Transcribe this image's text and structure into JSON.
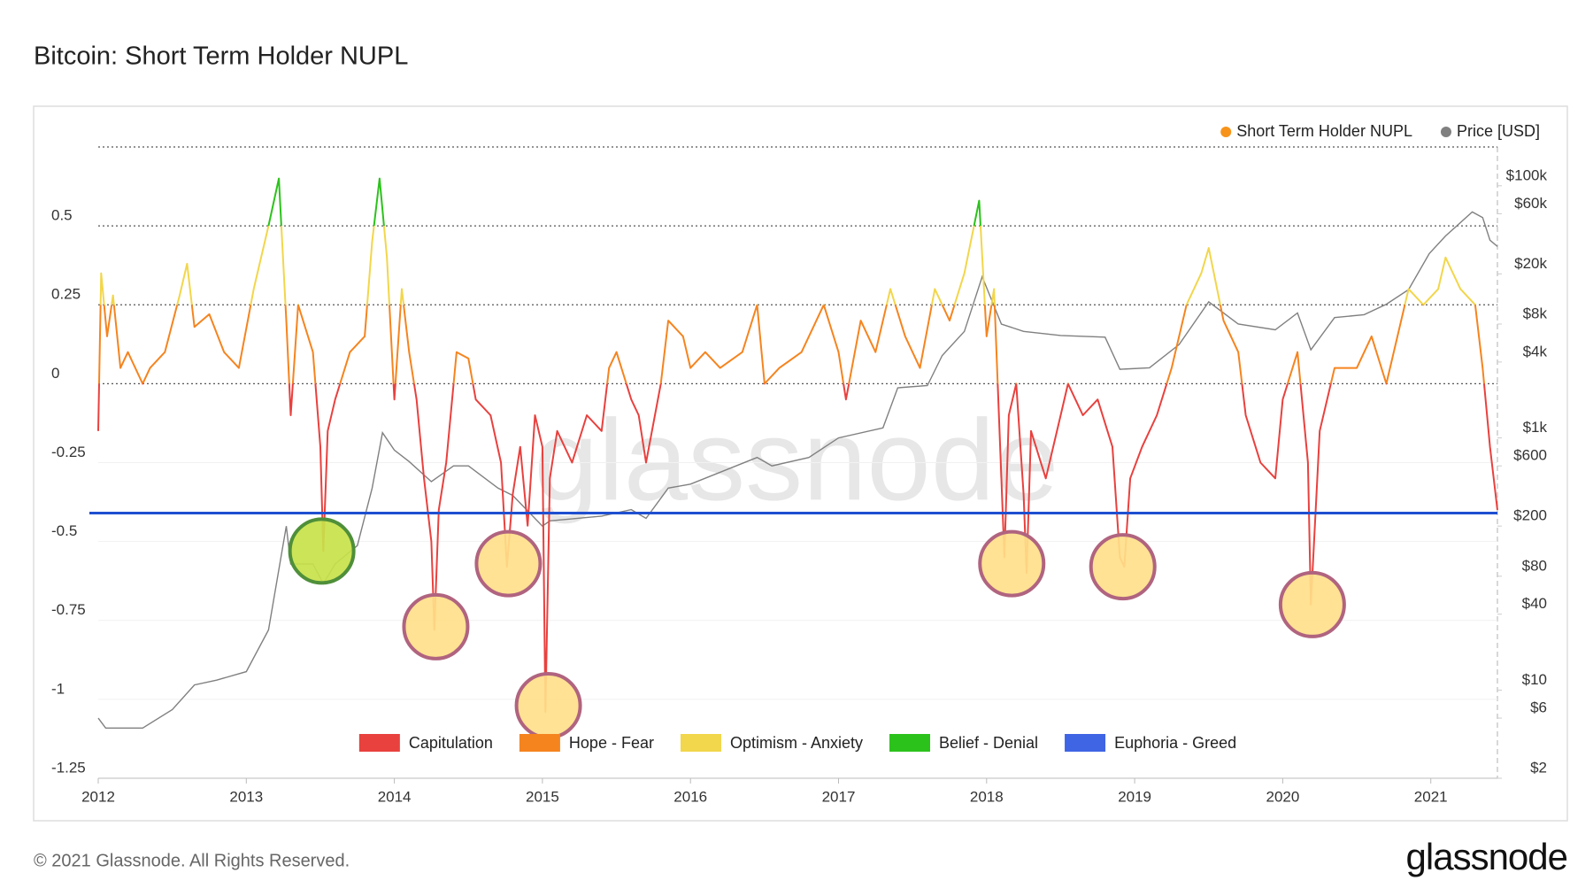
{
  "chart_data": {
    "type": "line",
    "title": "Bitcoin: Short Term Holder NUPL",
    "copyright": "© 2021 Glassnode. All Rights Reserved.",
    "brand": "glassnode",
    "watermark": "glassnode",
    "xlim": [
      2012,
      2021.45
    ],
    "xticks": [
      2012,
      2013,
      2014,
      2015,
      2016,
      2017,
      2018,
      2019,
      2020,
      2021
    ],
    "ylim": [
      -1.25,
      0.75
    ],
    "yticks": [
      -1.25,
      -1,
      -0.75,
      -0.5,
      -0.25,
      0,
      0.25,
      0.5
    ],
    "y2log": true,
    "y2lim": [
      2,
      203000
    ],
    "y2ticks": [
      {
        "value": 2,
        "label": "$2"
      },
      {
        "value": 6,
        "label": "$6"
      },
      {
        "value": 10,
        "label": "$10"
      },
      {
        "value": 40,
        "label": "$40"
      },
      {
        "value": 80,
        "label": "$80"
      },
      {
        "value": 200,
        "label": "$200"
      },
      {
        "value": 600,
        "label": "$600"
      },
      {
        "value": 1000,
        "label": "$1k"
      },
      {
        "value": 4000,
        "label": "$4k"
      },
      {
        "value": 8000,
        "label": "$8k"
      },
      {
        "value": 20000,
        "label": "$20k"
      },
      {
        "value": 60000,
        "label": "$60k"
      },
      {
        "value": 100000,
        "label": "$100k"
      }
    ],
    "grid": true,
    "legend": "top-right",
    "series": [
      {
        "name": "Short Term Holder NUPL",
        "color": "#f7931a",
        "x": [
          2012.0,
          2012.02,
          2012.06,
          2012.1,
          2012.15,
          2012.2,
          2012.3,
          2012.35,
          2012.45,
          2012.55,
          2012.6,
          2012.65,
          2012.75,
          2012.85,
          2012.95,
          2013.05,
          2013.15,
          2013.22,
          2013.27,
          2013.3,
          2013.35,
          2013.45,
          2013.5,
          2013.52,
          2013.55,
          2013.6,
          2013.7,
          2013.8,
          2013.85,
          2013.9,
          2013.95,
          2014.0,
          2014.05,
          2014.1,
          2014.15,
          2014.2,
          2014.25,
          2014.27,
          2014.3,
          2014.35,
          2014.42,
          2014.5,
          2014.55,
          2014.65,
          2014.72,
          2014.76,
          2014.8,
          2014.85,
          2014.9,
          2014.95,
          2015.0,
          2015.02,
          2015.05,
          2015.1,
          2015.2,
          2015.3,
          2015.4,
          2015.45,
          2015.5,
          2015.6,
          2015.65,
          2015.7,
          2015.8,
          2015.85,
          2015.95,
          2016.0,
          2016.1,
          2016.2,
          2016.35,
          2016.45,
          2016.5,
          2016.6,
          2016.75,
          2016.9,
          2017.0,
          2017.05,
          2017.15,
          2017.25,
          2017.35,
          2017.45,
          2017.55,
          2017.65,
          2017.75,
          2017.85,
          2017.95,
          2018.0,
          2018.05,
          2018.1,
          2018.12,
          2018.15,
          2018.2,
          2018.25,
          2018.27,
          2018.3,
          2018.4,
          2018.5,
          2018.55,
          2018.65,
          2018.75,
          2018.85,
          2018.9,
          2018.93,
          2018.97,
          2019.05,
          2019.15,
          2019.25,
          2019.35,
          2019.45,
          2019.5,
          2019.6,
          2019.7,
          2019.75,
          2019.85,
          2019.95,
          2020.0,
          2020.1,
          2020.17,
          2020.19,
          2020.25,
          2020.35,
          2020.5,
          2020.6,
          2020.7,
          2020.85,
          2020.95,
          2021.05,
          2021.1,
          2021.2,
          2021.3,
          2021.35,
          2021.4,
          2021.45
        ],
        "values": [
          -0.15,
          0.35,
          0.15,
          0.28,
          0.05,
          0.1,
          0.0,
          0.05,
          0.1,
          0.28,
          0.38,
          0.18,
          0.22,
          0.1,
          0.05,
          0.3,
          0.5,
          0.65,
          0.2,
          -0.1,
          0.25,
          0.1,
          -0.2,
          -0.53,
          -0.15,
          -0.05,
          0.1,
          0.15,
          0.45,
          0.65,
          0.4,
          -0.05,
          0.3,
          0.1,
          -0.05,
          -0.3,
          -0.5,
          -0.78,
          -0.4,
          -0.25,
          0.1,
          0.08,
          -0.05,
          -0.1,
          -0.25,
          -0.58,
          -0.35,
          -0.2,
          -0.45,
          -0.1,
          -0.2,
          -1.04,
          -0.3,
          -0.15,
          -0.25,
          -0.1,
          -0.15,
          0.05,
          0.1,
          -0.05,
          -0.1,
          -0.25,
          0.0,
          0.2,
          0.15,
          0.05,
          0.1,
          0.05,
          0.1,
          0.25,
          0.0,
          0.05,
          0.1,
          0.25,
          0.1,
          -0.05,
          0.2,
          0.1,
          0.3,
          0.15,
          0.05,
          0.3,
          0.2,
          0.35,
          0.58,
          0.15,
          0.3,
          -0.3,
          -0.55,
          -0.1,
          0.0,
          -0.35,
          -0.6,
          -0.15,
          -0.3,
          -0.1,
          0.0,
          -0.1,
          -0.05,
          -0.2,
          -0.55,
          -0.58,
          -0.3,
          -0.2,
          -0.1,
          0.05,
          0.25,
          0.35,
          0.43,
          0.2,
          0.1,
          -0.1,
          -0.25,
          -0.3,
          -0.05,
          0.1,
          -0.25,
          -0.7,
          -0.15,
          0.05,
          0.05,
          0.15,
          0.0,
          0.3,
          0.25,
          0.3,
          0.4,
          0.3,
          0.25,
          0.05,
          -0.2,
          -0.4
        ]
      },
      {
        "name": "Price [USD]",
        "color": "#808080",
        "axis": "y2",
        "x": [
          2012.0,
          2012.05,
          2012.3,
          2012.5,
          2012.65,
          2012.8,
          2013.0,
          2013.15,
          2013.27,
          2013.3,
          2013.45,
          2013.52,
          2013.6,
          2013.75,
          2013.85,
          2013.92,
          2014.0,
          2014.1,
          2014.25,
          2014.4,
          2014.5,
          2014.7,
          2014.8,
          2015.0,
          2015.05,
          2015.4,
          2015.6,
          2015.7,
          2015.85,
          2016.0,
          2016.45,
          2016.55,
          2016.8,
          2017.0,
          2017.3,
          2017.4,
          2017.6,
          2017.7,
          2017.85,
          2017.97,
          2018.1,
          2018.25,
          2018.5,
          2018.8,
          2018.9,
          2019.1,
          2019.3,
          2019.5,
          2019.7,
          2019.95,
          2020.1,
          2020.19,
          2020.35,
          2020.55,
          2020.7,
          2020.85,
          2020.99,
          2021.1,
          2021.28,
          2021.35,
          2021.4,
          2021.45
        ],
        "values": [
          6,
          5,
          5,
          7,
          11,
          12,
          14,
          30,
          200,
          100,
          100,
          70,
          100,
          140,
          400,
          1100,
          800,
          650,
          450,
          600,
          600,
          400,
          350,
          200,
          220,
          240,
          270,
          230,
          400,
          430,
          700,
          600,
          700,
          1000,
          1200,
          2500,
          2600,
          4500,
          7000,
          19000,
          8000,
          7000,
          6500,
          6300,
          3500,
          3600,
          5500,
          12000,
          8000,
          7200,
          9800,
          5000,
          9000,
          9500,
          11500,
          15000,
          29000,
          40000,
          62000,
          56000,
          37000,
          33000
        ]
      }
    ],
    "zones": [
      {
        "name": "Capitulation",
        "color": "#e8413e",
        "upper": 0
      },
      {
        "name": "Hope - Fear",
        "color": "#f5841f",
        "upper": 0.25
      },
      {
        "name": "Optimism - Anxiety",
        "color": "#f2d64b",
        "upper": 0.5
      },
      {
        "name": "Belief - Denial",
        "color": "#2cc21c",
        "upper": 0.75
      },
      {
        "name": "Euphoria - Greed",
        "color": "#3f64e4"
      }
    ],
    "reference_line": {
      "value": -0.41,
      "color": "#1f4fd0"
    },
    "highlights": [
      {
        "x": 2013.51,
        "y": -0.53,
        "fill": "#c8e24a",
        "stroke": "#4f8f3a"
      },
      {
        "x": 2014.28,
        "y": -0.77,
        "fill": "#ffe08a",
        "stroke": "#b0647f"
      },
      {
        "x": 2014.77,
        "y": -0.57,
        "fill": "#ffe08a",
        "stroke": "#b0647f"
      },
      {
        "x": 2015.04,
        "y": -1.02,
        "fill": "#ffe08a",
        "stroke": "#b0647f"
      },
      {
        "x": 2018.17,
        "y": -0.57,
        "fill": "#ffe08a",
        "stroke": "#b0647f"
      },
      {
        "x": 2018.92,
        "y": -0.58,
        "fill": "#ffe08a",
        "stroke": "#b0647f"
      },
      {
        "x": 2020.2,
        "y": -0.7,
        "fill": "#ffe08a",
        "stroke": "#b0647f"
      }
    ]
  }
}
